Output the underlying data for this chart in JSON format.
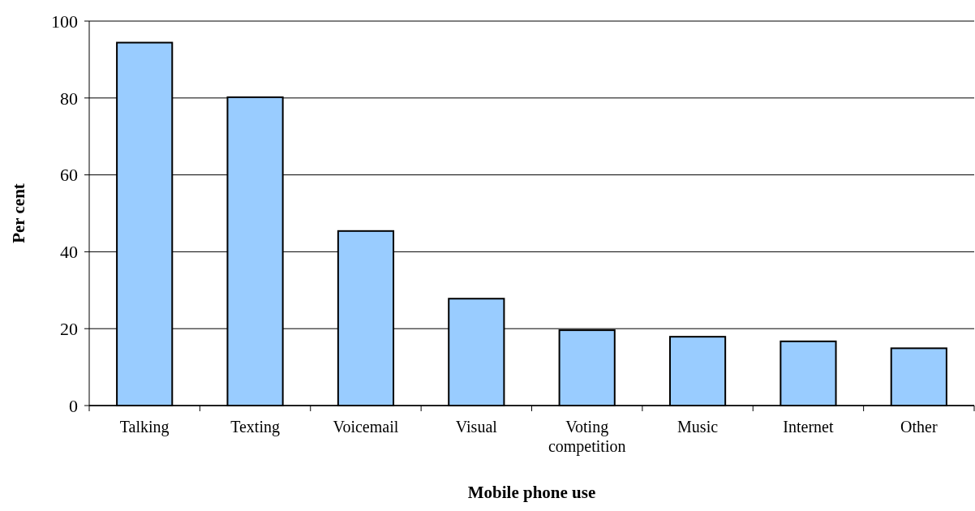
{
  "chart_data": {
    "type": "bar",
    "xlabel": "Mobile phone use",
    "ylabel": "Per cent",
    "categories": [
      "Talking",
      "Texting",
      "Voicemail",
      "Visual",
      "Voting competition",
      "Music",
      "Internet",
      "Other"
    ],
    "values": [
      94.4,
      80.2,
      45.4,
      27.8,
      19.6,
      17.9,
      16.7,
      14.9
    ],
    "color": "#99ccff",
    "ylim": [
      0,
      100
    ],
    "yticks": [
      0,
      20,
      40,
      60,
      80,
      100
    ],
    "grid": "y"
  }
}
